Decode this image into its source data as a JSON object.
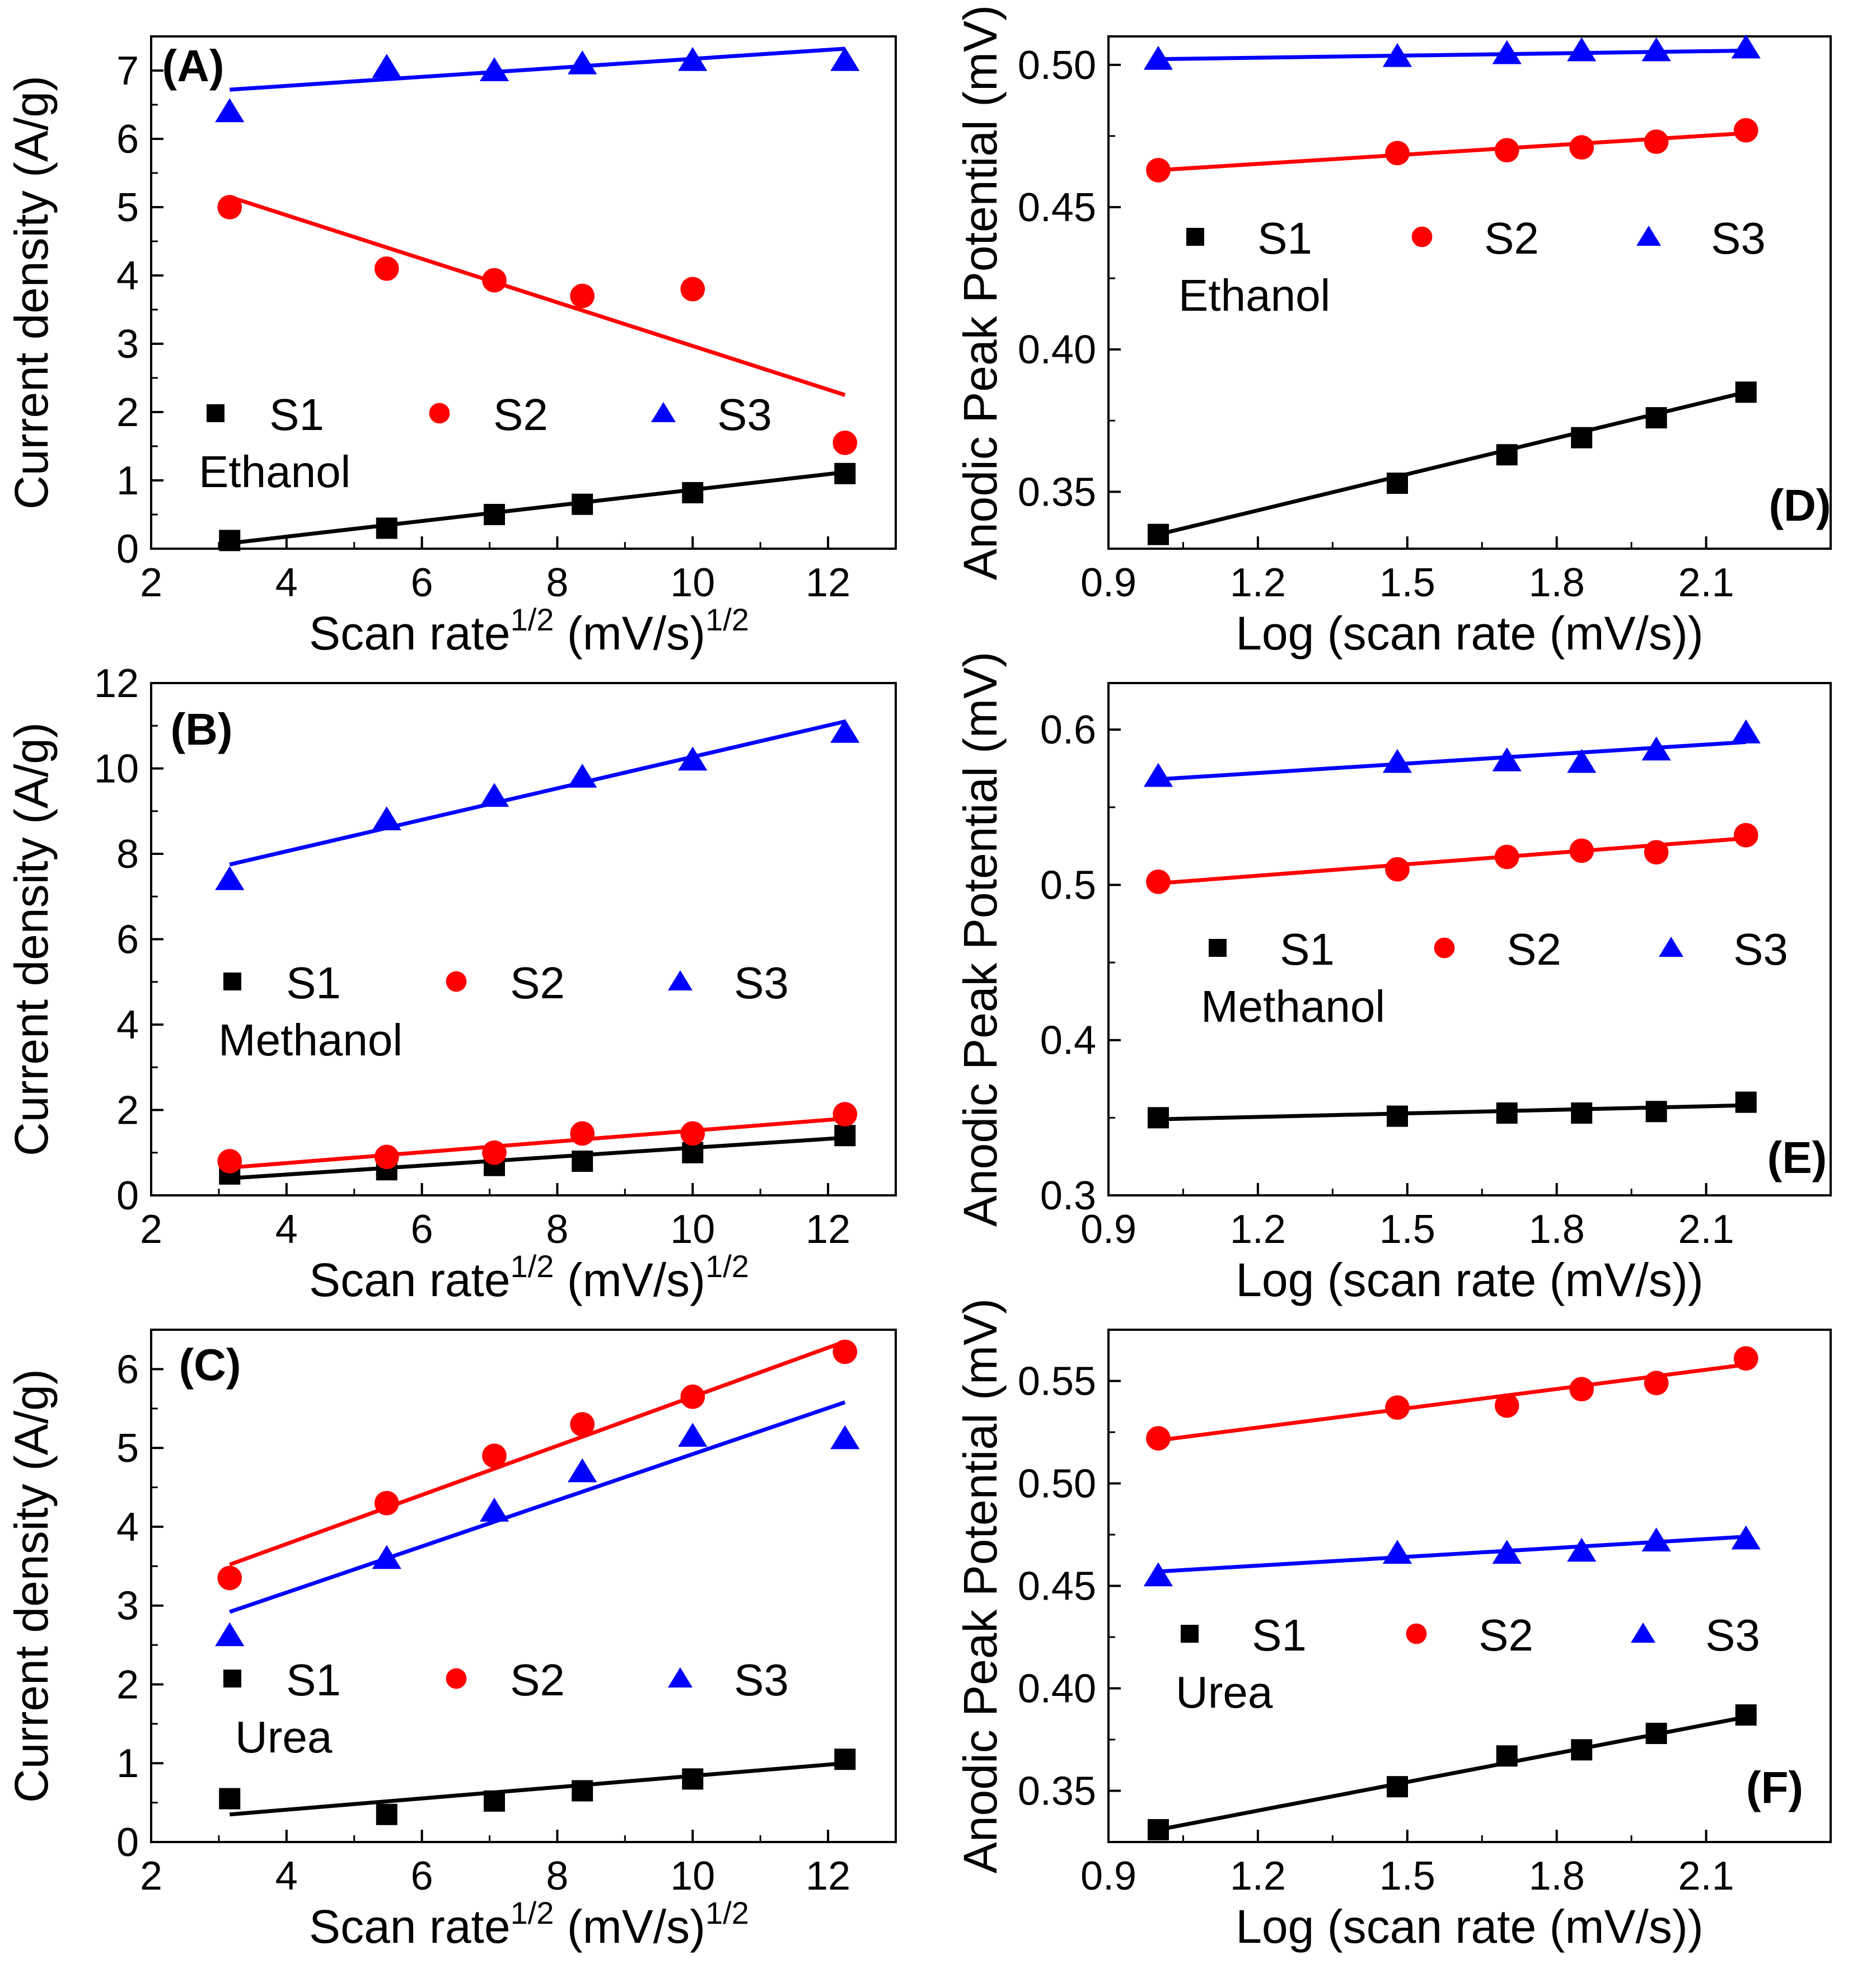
{
  "chart_data": [
    {
      "panel": "A",
      "type": "scatter",
      "panel_label": "(A)",
      "xlabel": "Scan rate",
      "xlabel_sup1": "1/2",
      "xlabel_units": " (mV/s)",
      "xlabel_sup2": "1/2",
      "ylabel": "Current density (A/g)",
      "xlim": [
        2,
        13
      ],
      "ylim": [
        0,
        7.5
      ],
      "xticks": [
        2,
        4,
        6,
        8,
        10,
        12
      ],
      "yticks": [
        0,
        1,
        2,
        3,
        4,
        5,
        6,
        7
      ],
      "x": [
        3.16,
        5.48,
        7.07,
        8.37,
        10.0,
        12.25
      ],
      "series": [
        {
          "name": "S1",
          "color": "#000000",
          "marker": "square",
          "values": [
            0.12,
            0.3,
            0.5,
            0.65,
            0.82,
            1.1
          ],
          "fit": [
            0.08,
            1.12
          ]
        },
        {
          "name": "S2",
          "color": "#ff0000",
          "marker": "circle",
          "values": [
            5.0,
            4.1,
            3.93,
            3.7,
            3.8,
            1.55
          ],
          "fit": [
            5.15,
            2.25
          ]
        },
        {
          "name": "S3",
          "color": "#0000ff",
          "marker": "triangle",
          "values": [
            6.4,
            7.05,
            7.0,
            7.1,
            7.15,
            7.15
          ],
          "fit": [
            6.72,
            7.32
          ]
        }
      ],
      "legend_position": "lower-middle",
      "annotation": "Ethanol"
    },
    {
      "panel": "B",
      "type": "scatter",
      "panel_label": "(B)",
      "xlabel": "Scan rate",
      "xlabel_sup1": "1/2",
      "xlabel_units": " (mV/s)",
      "xlabel_sup2": "1/2",
      "ylabel": "Current density (A/g)",
      "xlim": [
        2,
        13
      ],
      "ylim": [
        0,
        12
      ],
      "xticks": [
        2,
        4,
        6,
        8,
        10,
        12
      ],
      "yticks": [
        0,
        2,
        4,
        6,
        8,
        10,
        12
      ],
      "x": [
        3.16,
        5.48,
        7.07,
        8.37,
        10.0,
        12.25
      ],
      "series": [
        {
          "name": "S1",
          "color": "#000000",
          "marker": "square",
          "values": [
            0.5,
            0.6,
            0.7,
            0.8,
            1.0,
            1.4
          ],
          "fit": [
            0.4,
            1.35
          ]
        },
        {
          "name": "S2",
          "color": "#ff0000",
          "marker": "circle",
          "values": [
            0.8,
            0.9,
            1.0,
            1.45,
            1.45,
            1.9
          ],
          "fit": [
            0.65,
            1.8
          ]
        },
        {
          "name": "S3",
          "color": "#0000ff",
          "marker": "triangle",
          "values": [
            7.4,
            8.8,
            9.35,
            9.8,
            10.2,
            10.85
          ],
          "fit": [
            7.75,
            11.1
          ]
        }
      ],
      "legend_position": "middle",
      "annotation": "Methanol"
    },
    {
      "panel": "C",
      "type": "scatter",
      "panel_label": "(C)",
      "xlabel": "Scan rate",
      "xlabel_sup1": "1/2",
      "xlabel_units": " (mV/s)",
      "xlabel_sup2": "1/2",
      "ylabel": "Current density (A/g)",
      "xlim": [
        2,
        13
      ],
      "ylim": [
        0,
        6.5
      ],
      "xticks": [
        2,
        4,
        6,
        8,
        10,
        12
      ],
      "yticks": [
        0,
        1,
        2,
        3,
        4,
        5,
        6
      ],
      "x": [
        3.16,
        5.48,
        7.07,
        8.37,
        10.0,
        12.25
      ],
      "series": [
        {
          "name": "S1",
          "color": "#000000",
          "marker": "square",
          "values": [
            0.55,
            0.35,
            0.52,
            0.65,
            0.8,
            1.05
          ],
          "fit": [
            0.35,
            1.0
          ]
        },
        {
          "name": "S2",
          "color": "#ff0000",
          "marker": "circle",
          "values": [
            3.35,
            4.3,
            4.9,
            5.3,
            5.65,
            6.22
          ],
          "fit": [
            3.52,
            6.35
          ]
        },
        {
          "name": "S3",
          "color": "#0000ff",
          "marker": "triangle",
          "values": [
            2.62,
            3.6,
            4.2,
            4.7,
            5.15,
            5.12
          ],
          "fit": [
            2.92,
            5.58
          ]
        }
      ],
      "legend_position": "lower-middle",
      "annotation": "Urea"
    },
    {
      "panel": "D",
      "type": "scatter",
      "panel_label": "(D)",
      "xlabel": "Log (scan rate (mV/s))",
      "ylabel": "Anodic Peak Potential (mV)",
      "xlim": [
        0.9,
        2.35
      ],
      "ylim": [
        0.33,
        0.51
      ],
      "xticks": [
        0.9,
        1.2,
        1.5,
        1.8,
        2.1
      ],
      "xtick_labels": [
        "0.9",
        "1.2",
        "1.5",
        "1.8",
        "2.1"
      ],
      "yticks": [
        0.35,
        0.4,
        0.45,
        0.5
      ],
      "ytick_labels": [
        "0.35",
        "0.40",
        "0.45",
        "0.50"
      ],
      "x": [
        1.0,
        1.48,
        1.7,
        1.85,
        2.0,
        2.18
      ],
      "series": [
        {
          "name": "S1",
          "color": "#000000",
          "marker": "square",
          "values": [
            0.335,
            0.353,
            0.363,
            0.369,
            0.376,
            0.385
          ],
          "fit": [
            0.335,
            0.385
          ]
        },
        {
          "name": "S2",
          "color": "#ff0000",
          "marker": "circle",
          "values": [
            0.463,
            0.469,
            0.47,
            0.471,
            0.473,
            0.477
          ],
          "fit": [
            0.463,
            0.476
          ]
        },
        {
          "name": "S3",
          "color": "#0000ff",
          "marker": "triangle",
          "values": [
            0.502,
            0.503,
            0.504,
            0.505,
            0.505,
            0.506
          ],
          "fit": [
            0.502,
            0.505
          ]
        }
      ],
      "legend_position": "upper-middle",
      "annotation": "Ethanol"
    },
    {
      "panel": "E",
      "type": "scatter",
      "panel_label": "(E)",
      "xlabel": "Log (scan rate (mV/s))",
      "ylabel": "Anodic Peak Potential (mV)",
      "xlim": [
        0.9,
        2.35
      ],
      "ylim": [
        0.3,
        0.63
      ],
      "xticks": [
        0.9,
        1.2,
        1.5,
        1.8,
        2.1
      ],
      "xtick_labels": [
        "0.9",
        "1.2",
        "1.5",
        "1.8",
        "2.1"
      ],
      "yticks": [
        0.3,
        0.4,
        0.5,
        0.6
      ],
      "ytick_labels": [
        "0.3",
        "0.4",
        "0.5",
        "0.6"
      ],
      "x": [
        1.0,
        1.48,
        1.7,
        1.85,
        2.0,
        2.18
      ],
      "series": [
        {
          "name": "S1",
          "color": "#000000",
          "marker": "square",
          "values": [
            0.35,
            0.351,
            0.353,
            0.353,
            0.354,
            0.36
          ],
          "fit": [
            0.349,
            0.358
          ]
        },
        {
          "name": "S2",
          "color": "#ff0000",
          "marker": "circle",
          "values": [
            0.502,
            0.51,
            0.518,
            0.522,
            0.521,
            0.532
          ],
          "fit": [
            0.501,
            0.53
          ]
        },
        {
          "name": "S3",
          "color": "#0000ff",
          "marker": "triangle",
          "values": [
            0.57,
            0.579,
            0.58,
            0.579,
            0.587,
            0.598
          ],
          "fit": [
            0.568,
            0.592
          ]
        }
      ],
      "legend_position": "middle",
      "annotation": "Methanol"
    },
    {
      "panel": "F",
      "type": "scatter",
      "panel_label": "(F)",
      "xlabel": "Log (scan rate (mV/s))",
      "ylabel": "Anodic Peak Potential (mV)",
      "xlim": [
        0.9,
        2.35
      ],
      "ylim": [
        0.325,
        0.575
      ],
      "xticks": [
        0.9,
        1.2,
        1.5,
        1.8,
        2.1
      ],
      "xtick_labels": [
        "0.9",
        "1.2",
        "1.5",
        "1.8",
        "2.1"
      ],
      "yticks": [
        0.35,
        0.4,
        0.45,
        0.5,
        0.55
      ],
      "ytick_labels": [
        "0.35",
        "0.40",
        "0.45",
        "0.50",
        "0.55"
      ],
      "x": [
        1.0,
        1.48,
        1.7,
        1.85,
        2.0,
        2.18
      ],
      "series": [
        {
          "name": "S1",
          "color": "#000000",
          "marker": "square",
          "values": [
            0.331,
            0.352,
            0.367,
            0.37,
            0.378,
            0.387
          ],
          "fit": [
            0.331,
            0.386
          ]
        },
        {
          "name": "S2",
          "color": "#ff0000",
          "marker": "circle",
          "values": [
            0.522,
            0.537,
            0.538,
            0.546,
            0.549,
            0.561
          ],
          "fit": [
            0.521,
            0.558
          ]
        },
        {
          "name": "S3",
          "color": "#0000ff",
          "marker": "triangle",
          "values": [
            0.455,
            0.466,
            0.466,
            0.467,
            0.472,
            0.473
          ],
          "fit": [
            0.457,
            0.474
          ]
        }
      ],
      "legend_position": "lower-middle",
      "annotation": "Urea"
    }
  ]
}
